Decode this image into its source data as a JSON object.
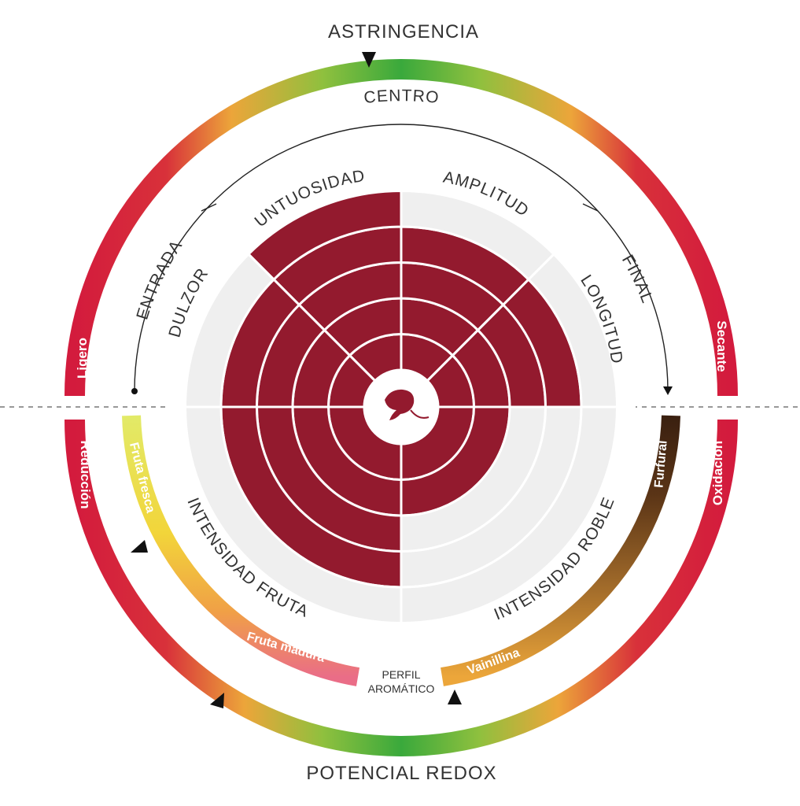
{
  "chart_data": {
    "type": "radial",
    "segments": [
      {
        "name": "UNTUOSIDAD",
        "value": 5
      },
      {
        "name": "AMPLITUD",
        "value": 4
      },
      {
        "name": "LONGITUD",
        "value": 4
      },
      {
        "name": "INTENSIDAD ROBLE",
        "value": 2
      },
      {
        "name": "INTENSIDAD FRUTA",
        "value": 4
      },
      {
        "name": "DULZOR",
        "value": 4
      }
    ],
    "max_level": 5,
    "astringencia": {
      "title": "ASTRINGENCIA",
      "left_label": "Ligero",
      "right_label": "Secante",
      "marker": 0.5
    },
    "phases": {
      "inicio": "ENTRADA",
      "medio": "CENTRO",
      "fin": "FINAL"
    },
    "redox": {
      "title": "POTENCIAL REDOX",
      "left_label": "Reducción",
      "right_label": "Oxidación",
      "marker": 0.67
    },
    "perfil_aromatico": {
      "title_line1": "PERFIL",
      "title_line2": "AROMÁTICO",
      "fruta": {
        "start": "Fruta fresca",
        "end": "Fruta madura",
        "marker": 0.18
      },
      "roble": {
        "start": "Vainillina",
        "end": "Furfural",
        "marker": 0.02
      }
    },
    "colors": {
      "fill": "#931a2e",
      "empty": "#efefef",
      "green": "#3aa93c",
      "yellow": "#e8b638",
      "red": "#d31b3d"
    }
  }
}
